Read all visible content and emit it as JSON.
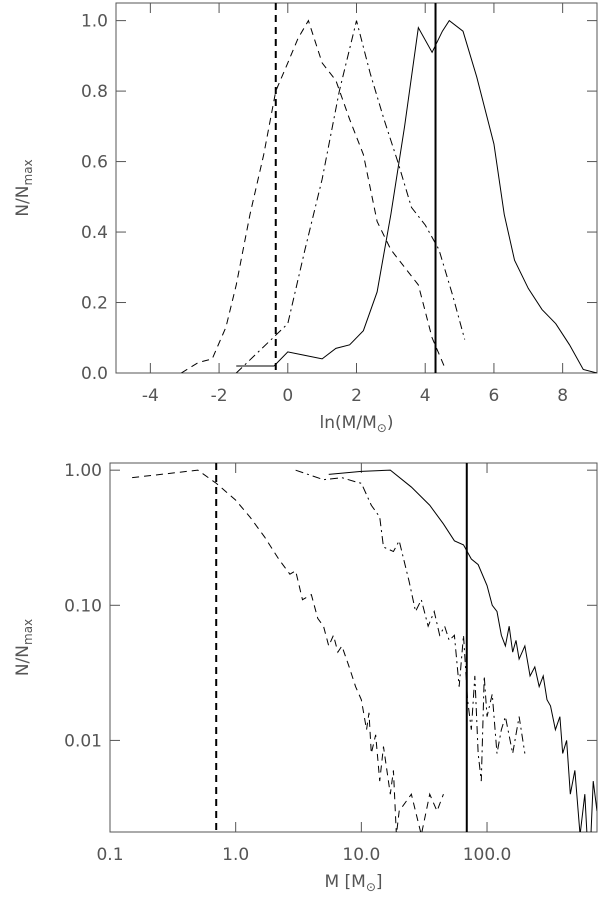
{
  "chart_data": [
    {
      "type": "line",
      "xlabel": [
        "ln(M/M",
        "⊙",
        ")"
      ],
      "ylabel": [
        "N/N",
        "max"
      ],
      "xlim": [
        -5,
        9
      ],
      "ylim": [
        0,
        1.05
      ],
      "xticks": [
        -4,
        -2,
        0,
        2,
        4,
        6,
        8
      ],
      "yticks": [
        {
          "value": 0,
          "label": "0.0"
        },
        0.2,
        0.4,
        0.6,
        0.8,
        {
          "value": 1,
          "label": "1.0"
        }
      ],
      "xlog": false,
      "ylog": false,
      "vlines": [
        {
          "x": -0.35,
          "dash": "dashed"
        },
        {
          "x": 4.3,
          "dash": "solid"
        }
      ],
      "series": [
        {
          "color": "#000",
          "dash": "dashed",
          "x": [
            -3.1,
            -2.6,
            -2.2,
            -1.8,
            -1.5,
            -1.1,
            -0.7,
            -0.35,
            0,
            0.3,
            0.6,
            1.0,
            1.4,
            1.8,
            2.2,
            2.6,
            3.0,
            3.4,
            3.8,
            4.2,
            4.55
          ],
          "values": [
            0.0,
            0.03,
            0.04,
            0.13,
            0.25,
            0.45,
            0.62,
            0.8,
            0.88,
            0.95,
            1.0,
            0.88,
            0.83,
            0.72,
            0.62,
            0.43,
            0.35,
            0.3,
            0.25,
            0.1,
            0.02
          ]
        },
        {
          "color": "#000",
          "dash": "dashdot",
          "x": [
            -1.5,
            0,
            0.5,
            1.0,
            1.5,
            2.0,
            2.4,
            2.8,
            3.2,
            3.6,
            4.0,
            4.4,
            4.8,
            5.15
          ],
          "values": [
            0.0,
            0.14,
            0.35,
            0.55,
            0.8,
            1.0,
            0.85,
            0.72,
            0.6,
            0.47,
            0.42,
            0.35,
            0.22,
            0.095
          ]
        },
        {
          "color": "#000",
          "dash": "solid",
          "x": [
            -1.5,
            -0.4,
            0,
            0.5,
            1.0,
            1.4,
            1.8,
            2.2,
            2.6,
            3.0,
            3.4,
            3.8,
            4.2,
            4.5,
            4.7,
            5.1,
            5.5,
            6.0,
            6.3,
            6.6,
            7.0,
            7.4,
            7.8,
            8.2,
            8.6,
            9.0
          ],
          "values": [
            0.02,
            0.02,
            0.06,
            0.05,
            0.04,
            0.07,
            0.08,
            0.12,
            0.23,
            0.45,
            0.7,
            0.98,
            0.91,
            0.97,
            1.0,
            0.97,
            0.84,
            0.65,
            0.45,
            0.32,
            0.24,
            0.18,
            0.14,
            0.08,
            0.01,
            0.0
          ]
        }
      ]
    },
    {
      "type": "line",
      "xlabel": [
        "M [M",
        "⊙",
        "]"
      ],
      "ylabel": [
        "N/N",
        "max"
      ],
      "xlim": [
        0.1,
        750
      ],
      "ylim": [
        0.0021,
        1.13
      ],
      "xticks": [
        0.1,
        {
          "value": 1,
          "label": "1.0"
        },
        {
          "value": 10,
          "label": "10.0"
        },
        {
          "value": 100,
          "label": "100.0"
        }
      ],
      "yticks": [
        0.01,
        {
          "value": 0.1,
          "label": "0.10"
        },
        {
          "value": 1,
          "label": "1.00"
        }
      ],
      "xlog": true,
      "ylog": true,
      "vlines": [
        {
          "x": 0.7,
          "dash": "dashed"
        },
        {
          "x": 69,
          "dash": "solid"
        }
      ],
      "series": [
        {
          "color": "#000",
          "dash": "dashed",
          "x": [
            0.15,
            0.5,
            0.7,
            1.0,
            1.3,
            1.7,
            2.2,
            2.7,
            3.0,
            3.4,
            4.0,
            4.5,
            5,
            5.5,
            6,
            6.5,
            7,
            8,
            9,
            10,
            11,
            11.5,
            12,
            13,
            14,
            15,
            17,
            18,
            19,
            20,
            25,
            30,
            35,
            40,
            45
          ],
          "values": [
            0.88,
            1.0,
            0.8,
            0.6,
            0.45,
            0.32,
            0.22,
            0.17,
            0.18,
            0.11,
            0.12,
            0.08,
            0.07,
            0.05,
            0.06,
            0.045,
            0.05,
            0.035,
            0.025,
            0.02,
            0.012,
            0.016,
            0.008,
            0.011,
            0.005,
            0.009,
            0.004,
            0.006,
            0.002,
            0.003,
            0.004,
            0.002,
            0.004,
            0.003,
            0.004
          ]
        },
        {
          "color": "#000",
          "dash": "dashdot",
          "x": [
            3,
            5,
            7,
            9,
            10,
            12,
            14,
            15,
            18,
            20,
            24,
            27,
            30,
            34,
            38,
            42,
            46,
            50,
            55,
            60,
            65,
            70,
            75,
            80,
            85,
            90,
            95,
            100,
            110,
            120,
            130,
            140,
            160,
            180,
            200
          ],
          "values": [
            1.0,
            0.85,
            0.88,
            0.82,
            0.8,
            0.55,
            0.45,
            0.27,
            0.25,
            0.3,
            0.15,
            0.09,
            0.11,
            0.07,
            0.09,
            0.06,
            0.07,
            0.055,
            0.06,
            0.025,
            0.06,
            0.02,
            0.012,
            0.03,
            0.008,
            0.005,
            0.03,
            0.015,
            0.022,
            0.008,
            0.012,
            0.015,
            0.008,
            0.015,
            0.008
          ]
        },
        {
          "color": "#000",
          "dash": "solid",
          "x": [
            5.5,
            10,
            17,
            25,
            35,
            45,
            55,
            65,
            75,
            85,
            100,
            110,
            120,
            130,
            140,
            150,
            160,
            170,
            180,
            200,
            220,
            240,
            260,
            280,
            300,
            320,
            350,
            380,
            400,
            430,
            460,
            500,
            550,
            600,
            650,
            700,
            750
          ],
          "values": [
            0.93,
            0.98,
            1.0,
            0.75,
            0.55,
            0.4,
            0.3,
            0.28,
            0.22,
            0.2,
            0.14,
            0.1,
            0.09,
            0.06,
            0.05,
            0.07,
            0.045,
            0.055,
            0.04,
            0.05,
            0.03,
            0.035,
            0.025,
            0.03,
            0.02,
            0.018,
            0.012,
            0.015,
            0.008,
            0.01,
            0.004,
            0.006,
            0.002,
            0.004,
            0.001,
            0.005,
            0.003
          ]
        }
      ]
    }
  ]
}
